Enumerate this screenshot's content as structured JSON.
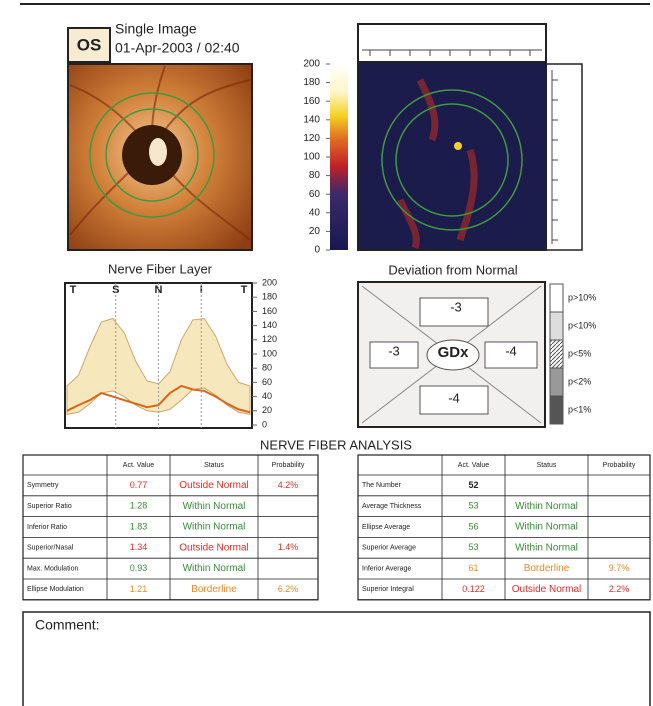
{
  "header": {
    "eye": "OS",
    "mode": "Single Image",
    "date": "01-Apr-2003 / 02:40"
  },
  "color_scale": {
    "ylim": [
      0,
      200
    ],
    "ticks": [
      0,
      20,
      40,
      60,
      80,
      100,
      120,
      140,
      160,
      180,
      200
    ]
  },
  "chart_data": {
    "type": "line",
    "title": "Nerve Fiber Layer",
    "sector_labels": [
      "T",
      "S",
      "N",
      "I",
      "T"
    ],
    "ylim": [
      0,
      200
    ],
    "yticks": [
      0,
      20,
      40,
      60,
      80,
      100,
      120,
      140,
      160,
      180,
      200
    ],
    "band": {
      "color": "#f6e7bd",
      "upper": [
        55,
        70,
        110,
        145,
        150,
        130,
        90,
        62,
        58,
        75,
        120,
        148,
        150,
        125,
        85,
        60,
        55
      ],
      "lower": [
        15,
        18,
        30,
        45,
        48,
        40,
        28,
        20,
        18,
        22,
        35,
        50,
        52,
        42,
        28,
        18,
        15
      ]
    },
    "series": [
      {
        "color": "#d9661a",
        "values": [
          20,
          28,
          35,
          45,
          40,
          35,
          30,
          25,
          28,
          45,
          55,
          50,
          48,
          40,
          30,
          22,
          18
        ]
      }
    ]
  },
  "deviation": {
    "title": "Deviation from Normal",
    "top": -3,
    "left": -3,
    "right": -4,
    "bottom": -4,
    "center": "GDx",
    "legend": [
      "p>10%",
      "p<10%",
      "p<5%",
      "p<2%",
      "p<1%"
    ]
  },
  "analysis": {
    "title": "NERVE FIBER ANALYSIS",
    "left": {
      "headers": [
        null,
        "Act. Value",
        "Status",
        "Probability"
      ],
      "rows": [
        {
          "label": "Symmetry",
          "value": 0.77,
          "status": "Outside Normal",
          "probability": "4.2%",
          "color": "#d8312a"
        },
        {
          "label": "Superior Ratio",
          "value": 1.28,
          "status": "Within Normal",
          "probability": null,
          "color": "#3a8a3a"
        },
        {
          "label": "Inferior Ratio",
          "value": 1.83,
          "status": "Within Normal",
          "probability": null,
          "color": "#3a8a3a"
        },
        {
          "label": "Superior/Nasal",
          "value": 1.34,
          "status": "Outside Normal",
          "probability": "1.4%",
          "color": "#d8312a"
        },
        {
          "label": "Max. Modulation",
          "value": 0.93,
          "status": "Within Normal",
          "probability": null,
          "color": "#3a8a3a"
        },
        {
          "label": "Ellipse Modulation",
          "value": 1.21,
          "status": "Borderline",
          "probability": "6.2%",
          "color": "#e8892e"
        }
      ]
    },
    "right": {
      "headers": [
        null,
        "Act. Value",
        "Status",
        "Probability"
      ],
      "rows": [
        {
          "label": "The Number",
          "value": 52,
          "status": null,
          "probability": null,
          "color": "#222222"
        },
        {
          "label": "Average Thickness",
          "value": 53,
          "status": "Within Normal",
          "probability": null,
          "color": "#3a8a3a"
        },
        {
          "label": "Ellipse Average",
          "value": 56,
          "status": "Within Normal",
          "probability": null,
          "color": "#3a8a3a"
        },
        {
          "label": "Superior Average",
          "value": 53,
          "status": "Within Normal",
          "probability": null,
          "color": "#3a8a3a"
        },
        {
          "label": "Inferior Average",
          "value": 61,
          "status": "Borderline",
          "probability": "9.7%",
          "color": "#e8892e"
        },
        {
          "label": "Superior Integral",
          "value": 0.122,
          "status": "Outside Normal",
          "probability": "2.2%",
          "color": "#d8312a"
        }
      ]
    }
  },
  "comment": {
    "label": "Comment:"
  }
}
